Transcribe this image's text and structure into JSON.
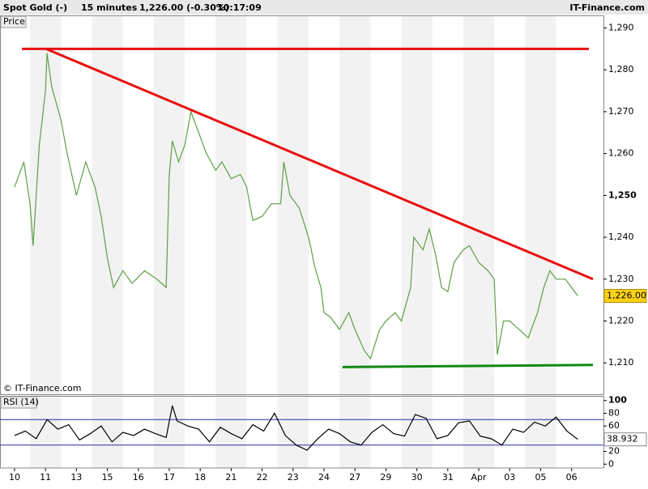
{
  "header": {
    "instrument": "Spot Gold (-)",
    "interval": "15 minutes",
    "quote": "1,226.00 (-0.30%)",
    "time": "10:17:09",
    "brand": "IT-Finance.com"
  },
  "chart_data": [
    {
      "type": "line",
      "label": "Price",
      "watermark": "© IT-Finance.com",
      "xlim": [
        -0.47,
        19.03
      ],
      "xticks": [
        {
          "value": 0,
          "label": "10"
        },
        {
          "value": 1,
          "label": "11"
        },
        {
          "value": 2,
          "label": "13"
        },
        {
          "value": 3,
          "label": "15"
        },
        {
          "value": 4,
          "label": "16"
        },
        {
          "value": 5,
          "label": "17"
        },
        {
          "value": 6,
          "label": "18"
        },
        {
          "value": 7,
          "label": "21"
        },
        {
          "value": 8,
          "label": "22"
        },
        {
          "value": 9,
          "label": "23"
        },
        {
          "value": 10,
          "label": "24"
        },
        {
          "value": 11,
          "label": "27"
        },
        {
          "value": 12,
          "label": "29"
        },
        {
          "value": 13,
          "label": "30"
        },
        {
          "value": 14,
          "label": "31"
        },
        {
          "value": 15,
          "label": "Apr"
        },
        {
          "value": 16,
          "label": "03"
        },
        {
          "value": 17,
          "label": "05"
        },
        {
          "value": 18,
          "label": "06"
        }
      ],
      "ylim": [
        1202.5,
        1293
      ],
      "yticks": [
        {
          "value": 1210,
          "label": "1,210"
        },
        {
          "value": 1220,
          "label": "1,220"
        },
        {
          "value": 1230,
          "label": "1,230"
        },
        {
          "value": 1240,
          "label": "1,240"
        },
        {
          "value": 1250,
          "label": "1,250"
        },
        {
          "value": 1260,
          "label": "1,260"
        },
        {
          "value": 1270,
          "label": "1,270"
        },
        {
          "value": 1280,
          "label": "1,280"
        },
        {
          "value": 1290,
          "label": "1,290"
        }
      ],
      "current_value": 1226,
      "current_label": "1,226.00",
      "series": [
        {
          "name": "Spot Gold",
          "color": "#5f9e48",
          "x": [
            0.0,
            0.3,
            0.5,
            0.6,
            0.8,
            1.0,
            1.05,
            1.2,
            1.5,
            1.7,
            2.0,
            2.3,
            2.6,
            2.8,
            3.0,
            3.2,
            3.5,
            3.8,
            4.2,
            4.6,
            4.9,
            5.0,
            5.1,
            5.3,
            5.5,
            5.7,
            5.9,
            6.2,
            6.5,
            6.7,
            7.0,
            7.3,
            7.5,
            7.7,
            8.0,
            8.3,
            8.6,
            8.7,
            8.9,
            9.2,
            9.5,
            9.7,
            9.9,
            10.0,
            10.2,
            10.5,
            10.8,
            11.0,
            11.3,
            11.5,
            11.8,
            12.0,
            12.3,
            12.5,
            12.8,
            12.9,
            13.2,
            13.4,
            13.6,
            13.8,
            14.0,
            14.2,
            14.5,
            14.7,
            15.0,
            15.3,
            15.5,
            15.6,
            15.8,
            16.0,
            16.3,
            16.6,
            16.9,
            17.1,
            17.3,
            17.5,
            17.8,
            18.0,
            18.2
          ],
          "values": [
            1252,
            1258,
            1248,
            1238,
            1262,
            1275,
            1284,
            1276,
            1268,
            1260,
            1250,
            1258,
            1252,
            1245,
            1235,
            1228,
            1232,
            1229,
            1232,
            1230,
            1228,
            1255,
            1263,
            1258,
            1262,
            1270,
            1266,
            1260,
            1256,
            1258,
            1254,
            1255,
            1252,
            1244,
            1245,
            1248,
            1248,
            1258,
            1250,
            1247,
            1240,
            1233,
            1228,
            1222,
            1221,
            1218,
            1222,
            1218,
            1213,
            1211,
            1218,
            1220,
            1222,
            1220,
            1228,
            1240,
            1237,
            1242,
            1236,
            1228,
            1227,
            1234,
            1237,
            1238,
            1234,
            1232,
            1230,
            1212,
            1220,
            1220,
            1218,
            1216,
            1222,
            1228,
            1232,
            1230,
            1230,
            1228,
            1226
          ]
        }
      ],
      "lines": [
        {
          "color": "#e81010",
          "x": [
            0.24,
            18.56
          ],
          "y": [
            1285,
            1285
          ]
        },
        {
          "color": "#e81010",
          "x": [
            1.02,
            18.69
          ],
          "y": [
            1285,
            1230
          ]
        },
        {
          "color": "#118811",
          "x": [
            10.6,
            18.69
          ],
          "y": [
            1209,
            1209.5
          ]
        }
      ]
    },
    {
      "type": "line",
      "label": "RSI (14)",
      "ylim": [
        -6,
        106
      ],
      "yticks": [
        0,
        20,
        40,
        60,
        80,
        100
      ],
      "bands": [
        30,
        70
      ],
      "current_value": 38.932,
      "series": [
        {
          "name": "RSI",
          "color": "#000000",
          "x": [
            0.0,
            0.35,
            0.7,
            1.05,
            1.4,
            1.75,
            2.1,
            2.45,
            2.8,
            3.15,
            3.5,
            3.85,
            4.2,
            4.55,
            4.9,
            5.1,
            5.25,
            5.6,
            5.95,
            6.3,
            6.65,
            7.0,
            7.35,
            7.7,
            8.05,
            8.4,
            8.75,
            9.1,
            9.45,
            9.8,
            10.15,
            10.5,
            10.85,
            11.2,
            11.55,
            11.9,
            12.25,
            12.6,
            12.95,
            13.3,
            13.65,
            14.0,
            14.35,
            14.7,
            15.05,
            15.4,
            15.75,
            16.1,
            16.45,
            16.8,
            17.15,
            17.5,
            17.85,
            18.2
          ],
          "values": [
            45,
            52,
            40,
            70,
            55,
            62,
            38,
            48,
            60,
            35,
            50,
            45,
            55,
            48,
            42,
            92,
            68,
            60,
            55,
            35,
            58,
            48,
            40,
            62,
            52,
            80,
            45,
            30,
            22,
            40,
            55,
            48,
            35,
            30,
            50,
            62,
            48,
            44,
            78,
            72,
            40,
            45,
            65,
            68,
            44,
            40,
            30,
            55,
            50,
            66,
            60,
            74,
            52,
            38.932
          ]
        }
      ]
    }
  ]
}
